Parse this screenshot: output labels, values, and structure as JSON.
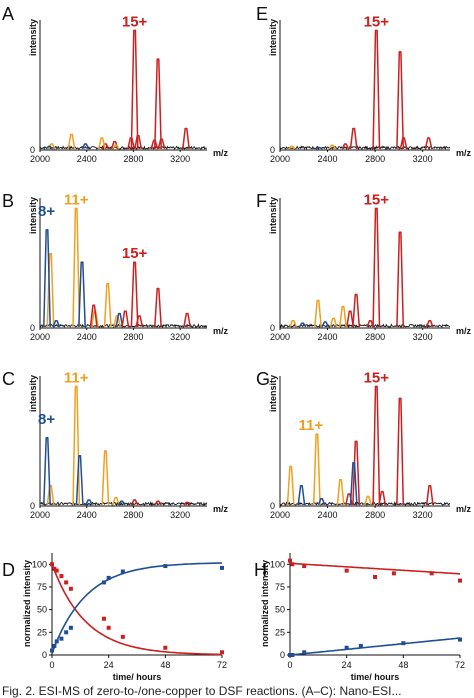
{
  "colors": {
    "red": "#cc1f1f",
    "orange": "#f0a020",
    "blue": "#1f4e96",
    "black": "#111111"
  },
  "caption": "Fig. 2.  ESI-MS of zero-to-/one-copper to DSF reactions. (A–C): Nano-ESI...",
  "chart_data": [
    {
      "panel": "A",
      "type": "line",
      "ylabel": "intensity",
      "xlabel": "m/z",
      "xticks": [
        2000,
        2400,
        2800,
        3200
      ],
      "xlim": [
        2000,
        3430
      ],
      "tick_zero": "0",
      "annotations": [
        {
          "text": "15+",
          "color": "red",
          "x": 2810
        }
      ],
      "series": [
        {
          "color": "red",
          "peaks": [
            [
              2810,
              1.0
            ],
            [
              2780,
              0.1
            ],
            [
              2840,
              0.12
            ],
            [
              3010,
              0.76
            ],
            [
              2980,
              0.08
            ],
            [
              3040,
              0.09
            ],
            [
              3250,
              0.18
            ],
            [
              2640,
              0.07
            ],
            [
              2560,
              0.05
            ]
          ]
        },
        {
          "color": "orange",
          "peaks": [
            [
              2270,
              0.13
            ],
            [
              2530,
              0.1
            ],
            [
              2100,
              0.05
            ],
            [
              2650,
              0.04
            ]
          ]
        },
        {
          "color": "blue",
          "peaks": [
            [
              2390,
              0.05
            ],
            [
              2080,
              0.03
            ]
          ]
        }
      ]
    },
    {
      "panel": "B",
      "type": "line",
      "ylabel": "intensity",
      "xlabel": "m/z",
      "xticks": [
        2000,
        2400,
        2800,
        3200
      ],
      "xlim": [
        2000,
        3430
      ],
      "tick_zero": "0",
      "annotations": [
        {
          "text": "11+",
          "color": "orange",
          "x": 2310
        },
        {
          "text": "8+",
          "color": "blue",
          "x": 2070
        },
        {
          "text": "15+",
          "color": "red",
          "x": 2810
        }
      ],
      "series": [
        {
          "color": "orange",
          "peaks": [
            [
              2310,
              1.0
            ],
            [
              2090,
              0.62
            ],
            [
              2580,
              0.37
            ],
            [
              2470,
              0.14
            ],
            [
              2660,
              0.1
            ]
          ]
        },
        {
          "color": "blue",
          "peaks": [
            [
              2060,
              0.82
            ],
            [
              2360,
              0.55
            ],
            [
              2680,
              0.12
            ],
            [
              2140,
              0.06
            ]
          ]
        },
        {
          "color": "red",
          "peaks": [
            [
              2810,
              0.55
            ],
            [
              3010,
              0.33
            ],
            [
              2850,
              0.1
            ],
            [
              3260,
              0.12
            ],
            [
              2460,
              0.19
            ],
            [
              2730,
              0.14
            ]
          ]
        }
      ]
    },
    {
      "panel": "C",
      "type": "line",
      "ylabel": "intensity",
      "xlabel": "m/z",
      "xticks": [
        2000,
        2400,
        2800,
        3200
      ],
      "xlim": [
        2000,
        3430
      ],
      "tick_zero": "0",
      "annotations": [
        {
          "text": "11+",
          "color": "orange",
          "x": 2310
        },
        {
          "text": "8+",
          "color": "blue",
          "x": 2060
        }
      ],
      "series": [
        {
          "color": "orange",
          "peaks": [
            [
              2310,
              1.0
            ],
            [
              2090,
              0.17
            ],
            [
              2560,
              0.46
            ],
            [
              2650,
              0.07
            ]
          ]
        },
        {
          "color": "blue",
          "peaks": [
            [
              2060,
              0.57
            ],
            [
              2340,
              0.42
            ],
            [
              2420,
              0.05
            ],
            [
              2700,
              0.04
            ]
          ]
        },
        {
          "color": "red",
          "peaks": [
            [
              2810,
              0.05
            ],
            [
              3010,
              0.04
            ],
            [
              3260,
              0.03
            ]
          ]
        }
      ]
    },
    {
      "panel": "D",
      "type": "scatter",
      "ylabel": "normalized intensity",
      "xlabel": "time/ hours",
      "xticks": [
        0,
        24,
        48,
        72
      ],
      "xlim": [
        0,
        72
      ],
      "yticks": [
        0,
        25,
        50,
        75,
        100
      ],
      "ylim": [
        0,
        108
      ],
      "series": [
        {
          "color": "red",
          "x": [
            0,
            1,
            2,
            4,
            6,
            8,
            22,
            24,
            30,
            48,
            72
          ],
          "y": [
            100,
            95,
            93,
            87,
            80,
            73,
            40,
            30,
            20,
            8,
            3
          ],
          "fit": "exp_decay",
          "fit_k": 0.07
        },
        {
          "color": "blue",
          "x": [
            0,
            1,
            2,
            4,
            6,
            8,
            22,
            24,
            30,
            48,
            72
          ],
          "y": [
            5,
            10,
            15,
            18,
            25,
            30,
            80,
            85,
            92,
            98,
            96
          ],
          "fit": "exp_rise",
          "fit_k": 0.07
        }
      ]
    },
    {
      "panel": "E",
      "type": "line",
      "ylabel": "intensity",
      "xlabel": "m/z",
      "xticks": [
        2000,
        2400,
        2800,
        3200
      ],
      "xlim": [
        2000,
        3430
      ],
      "tick_zero": "0",
      "annotations": [
        {
          "text": "15+",
          "color": "red",
          "x": 2810
        }
      ],
      "series": [
        {
          "color": "red",
          "peaks": [
            [
              2810,
              1.0
            ],
            [
              3010,
              0.82
            ],
            [
              3040,
              0.1
            ],
            [
              2620,
              0.18
            ],
            [
              3250,
              0.1
            ],
            [
              2550,
              0.05
            ]
          ]
        },
        {
          "color": "orange",
          "peaks": [
            [
              2100,
              0.03
            ],
            [
              2440,
              0.04
            ]
          ]
        },
        {
          "color": "blue",
          "peaks": [
            [
              2330,
              0.02
            ]
          ]
        }
      ]
    },
    {
      "panel": "F",
      "type": "line",
      "ylabel": "intensity",
      "xlabel": "m/z",
      "xticks": [
        2000,
        2400,
        2800,
        3200
      ],
      "xlim": [
        2000,
        3430
      ],
      "tick_zero": "0",
      "annotations": [
        {
          "text": "15+",
          "color": "red",
          "x": 2810
        }
      ],
      "series": [
        {
          "color": "red",
          "peaks": [
            [
              2810,
              1.0
            ],
            [
              3010,
              0.8
            ],
            [
              2640,
              0.28
            ],
            [
              2590,
              0.14
            ],
            [
              2760,
              0.06
            ],
            [
              3260,
              0.06
            ]
          ]
        },
        {
          "color": "orange",
          "peaks": [
            [
              2320,
              0.23
            ],
            [
              2530,
              0.18
            ],
            [
              2110,
              0.06
            ],
            [
              2450,
              0.08
            ]
          ]
        },
        {
          "color": "blue",
          "peaks": [
            [
              2190,
              0.04
            ],
            [
              2380,
              0.05
            ]
          ]
        }
      ]
    },
    {
      "panel": "G",
      "type": "line",
      "ylabel": "intensity",
      "xlabel": "m/z",
      "xticks": [
        2000,
        2400,
        2800,
        3200
      ],
      "xlim": [
        2000,
        3430
      ],
      "tick_zero": "0",
      "annotations": [
        {
          "text": "15+",
          "color": "red",
          "x": 2810
        },
        {
          "text": "11+",
          "color": "orange",
          "x": 2310
        }
      ],
      "series": [
        {
          "color": "red",
          "peaks": [
            [
              2810,
              1.0
            ],
            [
              3010,
              0.9
            ],
            [
              2640,
              0.54
            ],
            [
              2580,
              0.1
            ],
            [
              3260,
              0.17
            ],
            [
              2860,
              0.12
            ]
          ]
        },
        {
          "color": "orange",
          "peaks": [
            [
              2310,
              0.6
            ],
            [
              2090,
              0.33
            ],
            [
              2510,
              0.22
            ],
            [
              2740,
              0.08
            ]
          ]
        },
        {
          "color": "blue",
          "peaks": [
            [
              2180,
              0.17
            ],
            [
              2620,
              0.36
            ],
            [
              2350,
              0.06
            ]
          ]
        }
      ]
    },
    {
      "panel": "H",
      "type": "scatter",
      "ylabel": "normalized intensity",
      "xlabel": "time/ hours",
      "xticks": [
        0,
        24,
        48,
        72
      ],
      "xlim": [
        0,
        72
      ],
      "yticks": [
        0,
        25,
        50,
        75,
        100
      ],
      "ylim": [
        0,
        108
      ],
      "series": [
        {
          "color": "red",
          "x": [
            0,
            1,
            6,
            24,
            36,
            44,
            60,
            72
          ],
          "y": [
            104,
            100,
            98,
            93,
            86,
            90,
            90,
            82
          ],
          "fit": "linear",
          "fit_a": 101,
          "fit_b": -0.16
        },
        {
          "color": "blue",
          "x": [
            0,
            1,
            6,
            24,
            30,
            48,
            72
          ],
          "y": [
            0,
            0,
            3,
            8,
            10,
            13,
            17
          ],
          "fit": "linear",
          "fit_a": 0,
          "fit_b": 0.26
        }
      ]
    }
  ]
}
